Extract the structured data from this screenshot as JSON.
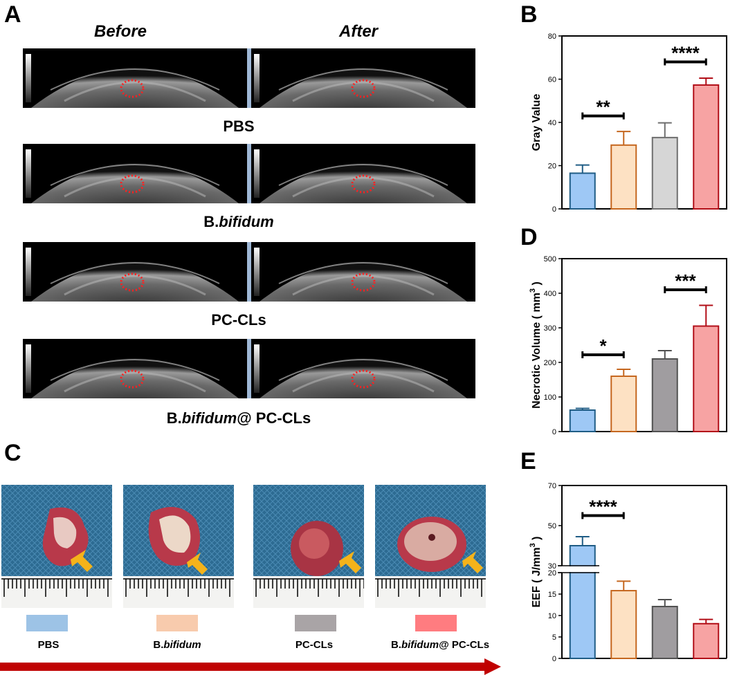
{
  "panel_a": {
    "letter": "A",
    "col_before": "Before",
    "col_after": "After",
    "rows": [
      {
        "label": "PBS"
      },
      {
        "label_plain": "B.",
        "label_italic": "bifidum"
      },
      {
        "label": "PC-CLs"
      },
      {
        "label_plain": "B.",
        "label_italic": "bifidum",
        "label_suffix": "@ PC-CLs"
      }
    ]
  },
  "panel_c": {
    "letter": "C",
    "groups": [
      {
        "plain": "PBS",
        "italic": "",
        "suffix": "",
        "color": "#9dc3e6"
      },
      {
        "plain": "B.",
        "italic": "bifidum",
        "suffix": "",
        "color": "#f8cbad"
      },
      {
        "plain": "PC-CLs",
        "italic": "",
        "suffix": "",
        "color": "#a9a4a6"
      },
      {
        "plain": "B.",
        "italic": "bifidum",
        "suffix": "@ PC-CLs",
        "color": "#ff7c80"
      }
    ],
    "arrow_color": "#c00000",
    "marker_color": "#f5b31a"
  },
  "chart_data": [
    {
      "panel": "B",
      "type": "bar",
      "ylabel": "Gray Value",
      "ylim": [
        0,
        80
      ],
      "yticks": [
        0,
        20,
        40,
        60,
        80
      ],
      "values": [
        16.5,
        29.5,
        33,
        57.3
      ],
      "errors": [
        3.8,
        6.3,
        6.8,
        3.2
      ],
      "fills": [
        "#9ec8f5",
        "#fde1c3",
        "#d6d6d6",
        "#f7a3a3"
      ],
      "strokes": [
        "#1f5c85",
        "#c5671f",
        "#6e6e6e",
        "#b20f18"
      ],
      "significance": [
        {
          "from": 0,
          "to": 1,
          "y": 43,
          "label": "**"
        },
        {
          "from": 2,
          "to": 3,
          "y": 68,
          "label": "****"
        }
      ]
    },
    {
      "panel": "D",
      "type": "bar",
      "ylabel": "Necrotic Volume ( mm",
      "ylabel_sup": "3",
      "ylabel_end": " )",
      "ylim": [
        0,
        500
      ],
      "yticks": [
        0,
        100,
        200,
        300,
        400,
        500
      ],
      "values": [
        62,
        160,
        210,
        305
      ],
      "errors": [
        5,
        20,
        24,
        60
      ],
      "fills": [
        "#9ec8f5",
        "#fde1c3",
        "#a09da0",
        "#f7a3a3"
      ],
      "strokes": [
        "#1f5c85",
        "#c5671f",
        "#505050",
        "#b20f18"
      ],
      "significance": [
        {
          "from": 0,
          "to": 1,
          "y": 222,
          "label": "*"
        },
        {
          "from": 2,
          "to": 3,
          "y": 410,
          "label": "***"
        }
      ]
    },
    {
      "panel": "E",
      "type": "bar",
      "ylabel": "EEF ( J/mm",
      "ylabel_sup": "3",
      "ylabel_end": " )",
      "axis_break": true,
      "lower_ylim": [
        0,
        20
      ],
      "lower_yticks": [
        0,
        5,
        10,
        15,
        20
      ],
      "upper_ylim": [
        30,
        70
      ],
      "upper_yticks": [
        30,
        50,
        70
      ],
      "values": [
        40,
        15.8,
        12.1,
        8.1
      ],
      "errors": [
        4.5,
        2.2,
        1.6,
        1.0
      ],
      "fills": [
        "#9ec8f5",
        "#fde1c3",
        "#a09da0",
        "#f7a3a3"
      ],
      "strokes": [
        "#1f5c85",
        "#c5671f",
        "#505050",
        "#b20f18"
      ],
      "significance": [
        {
          "from": 0,
          "to": 1,
          "y": 55,
          "label": "****"
        }
      ]
    }
  ]
}
